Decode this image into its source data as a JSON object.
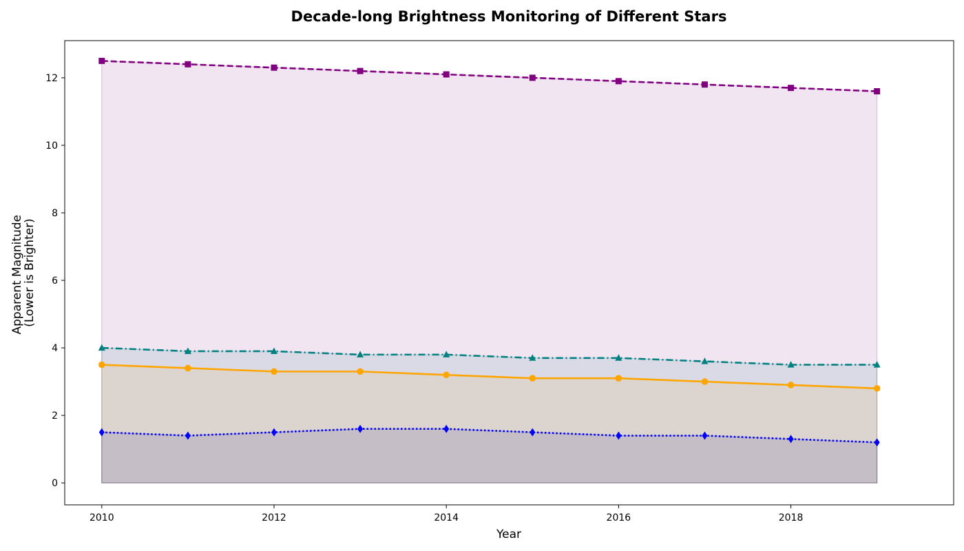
{
  "chart_data": {
    "type": "area",
    "title": "Decade-long Brightness Monitoring of Different Stars",
    "xlabel": "Year",
    "ylabel": [
      "Apparent Magnitude",
      "(Lower is Brighter)"
    ],
    "x": [
      2010,
      2011,
      2012,
      2013,
      2014,
      2015,
      2016,
      2017,
      2018,
      2019
    ],
    "xlim": [
      2009.57,
      2019.89
    ],
    "ylim": [
      -0.65,
      13.1
    ],
    "x_ticks": [
      2010,
      2012,
      2014,
      2016,
      2018
    ],
    "y_ticks": [
      0,
      2,
      4,
      6,
      8,
      10,
      12
    ],
    "grid": false,
    "legend": "none",
    "series": [
      {
        "values": [
          12.5,
          12.4,
          12.3,
          12.2,
          12.1,
          12.0,
          11.9,
          11.8,
          11.7,
          11.6
        ],
        "color": "#800080",
        "fill_color": "#800080",
        "line_style": "dashed",
        "marker": "square"
      },
      {
        "values": [
          4.0,
          3.9,
          3.9,
          3.8,
          3.8,
          3.7,
          3.7,
          3.6,
          3.5,
          3.5
        ],
        "color": "#008080",
        "fill_color": "#008080",
        "line_style": "dashdot",
        "marker": "triangle"
      },
      {
        "values": [
          3.5,
          3.4,
          3.3,
          3.3,
          3.2,
          3.1,
          3.1,
          3.0,
          2.9,
          2.8
        ],
        "color": "#FFA500",
        "fill_color": "#FFA500",
        "line_style": "solid",
        "marker": "circle"
      },
      {
        "values": [
          1.5,
          1.4,
          1.5,
          1.6,
          1.6,
          1.5,
          1.4,
          1.4,
          1.3,
          1.2
        ],
        "color": "#0000FF",
        "fill_color": "#00008B",
        "line_style": "dotted",
        "marker": "diamond"
      }
    ]
  }
}
